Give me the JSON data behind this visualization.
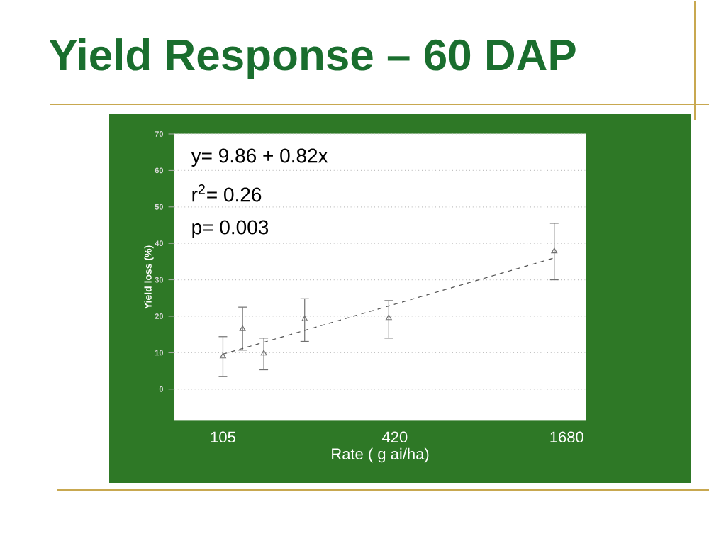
{
  "chart_data": {
    "type": "scatter",
    "title": "Yield Response – 60 DAP",
    "xlabel": "Rate ( g ai/ha)",
    "ylabel": "Yield loss (%)",
    "log": "x",
    "xlim": [
      71,
      1958
    ],
    "xticks": [
      105,
      420,
      1680
    ],
    "ylim": [
      -8.6,
      70
    ],
    "yticks": [
      0,
      10,
      20,
      30,
      40,
      50,
      60,
      70
    ],
    "grid": "y",
    "marker": "triangle",
    "annotations": [
      "y= 9.86 + 0.82x",
      "r$^{2}$= 0.26",
      "p= 0.003"
    ],
    "series": [
      {
        "color": "#707070",
        "x": [
          105,
          123,
          146,
          203,
          400,
          1520
        ],
        "values": [
          9.0,
          16.5,
          9.8,
          19.2,
          19.5,
          37.8
        ],
        "errors": [
          [
            3.5,
            14.4
          ],
          [
            10.7,
            22.5
          ],
          [
            5.3,
            14.0
          ],
          [
            13.1,
            24.8
          ],
          [
            14.0,
            24.3
          ],
          [
            30.0,
            45.5
          ]
        ]
      },
      {
        "type": "line",
        "color": "#505050",
        "line_style": "dashed",
        "marker": "none",
        "x": [
          105,
          1520
        ],
        "values": [
          9.6,
          36.0
        ]
      }
    ]
  }
}
